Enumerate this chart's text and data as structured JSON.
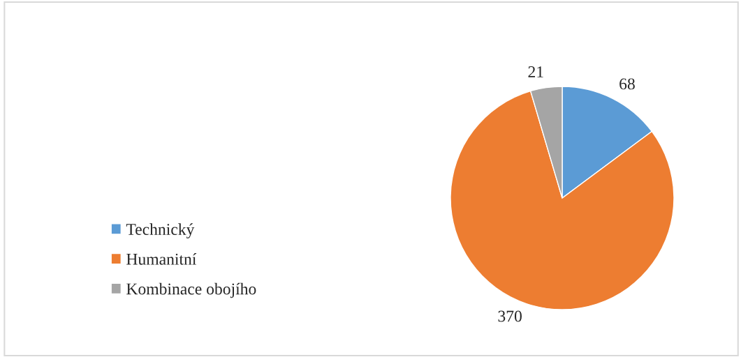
{
  "chart_data": {
    "type": "pie",
    "categories": [
      "Technický",
      "Humanitní",
      "Kombinace obojího"
    ],
    "values": [
      68,
      370,
      21
    ],
    "colors": [
      "#5b9bd5",
      "#ed7d31",
      "#a5a5a5"
    ],
    "data_labels": true,
    "legend": "left"
  }
}
